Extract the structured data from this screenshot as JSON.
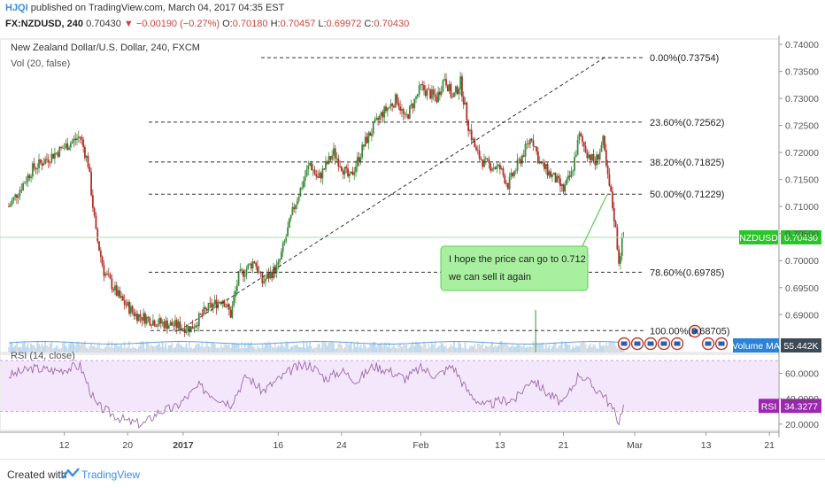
{
  "header": {
    "publisher": "HJQI",
    "published_text": "published on TradingView.com, March 04, 2017 04:35 EST",
    "symbol": "FX:NZDUSD, 240",
    "last": "0.70430",
    "change": "▼ −0.00190 (−0.27%)",
    "ohlc": {
      "o_label": "O:",
      "o": "0.70180",
      "h_label": "H:",
      "h": "0.70457",
      "l_label": "L:",
      "l": "0.69972",
      "c_label": "C:",
      "c": "0.70430"
    }
  },
  "chart_data": [
    {
      "type": "candlestick",
      "title": "New Zealand Dollar/U.S. Dollar, 240, FXCM",
      "subtitle": "Vol (20, false)",
      "ylim": [
        0.683,
        0.741
      ],
      "yticks": [
        0.74,
        0.735,
        0.73,
        0.725,
        0.72,
        0.715,
        0.71,
        0.705,
        0.7,
        0.695,
        0.69
      ],
      "ytick_labels": [
        "0.74000",
        "0.73500",
        "0.73000",
        "0.72500",
        "0.72000",
        "0.71500",
        "0.71000",
        "0.70500",
        "0.70000",
        "0.69500",
        "0.69000"
      ],
      "price_anchors": [
        {
          "d": 0,
          "p": 0.71
        },
        {
          "d": 3,
          "p": 0.717
        },
        {
          "d": 6,
          "p": 0.72
        },
        {
          "d": 9,
          "p": 0.723
        },
        {
          "d": 10,
          "p": 0.718
        },
        {
          "d": 11,
          "p": 0.705
        },
        {
          "d": 12,
          "p": 0.698
        },
        {
          "d": 14,
          "p": 0.693
        },
        {
          "d": 16,
          "p": 0.69
        },
        {
          "d": 19,
          "p": 0.6885
        },
        {
          "d": 21,
          "p": 0.688
        },
        {
          "d": 23,
          "p": 0.6875
        },
        {
          "d": 25,
          "p": 0.691
        },
        {
          "d": 27,
          "p": 0.693
        },
        {
          "d": 28,
          "p": 0.69
        },
        {
          "d": 29,
          "p": 0.697
        },
        {
          "d": 31,
          "p": 0.7
        },
        {
          "d": 32,
          "p": 0.696
        },
        {
          "d": 34,
          "p": 0.699
        },
        {
          "d": 36,
          "p": 0.71
        },
        {
          "d": 38,
          "p": 0.718
        },
        {
          "d": 39,
          "p": 0.715
        },
        {
          "d": 41,
          "p": 0.72
        },
        {
          "d": 43,
          "p": 0.715
        },
        {
          "d": 45,
          "p": 0.722
        },
        {
          "d": 47,
          "p": 0.727
        },
        {
          "d": 49,
          "p": 0.73
        },
        {
          "d": 50,
          "p": 0.726
        },
        {
          "d": 52,
          "p": 0.732
        },
        {
          "d": 54,
          "p": 0.73
        },
        {
          "d": 55,
          "p": 0.734
        },
        {
          "d": 56,
          "p": 0.73
        },
        {
          "d": 57,
          "p": 0.733
        },
        {
          "d": 58,
          "p": 0.725
        },
        {
          "d": 59,
          "p": 0.72
        },
        {
          "d": 60,
          "p": 0.718
        },
        {
          "d": 62,
          "p": 0.717
        },
        {
          "d": 63,
          "p": 0.714
        },
        {
          "d": 65,
          "p": 0.72
        },
        {
          "d": 66,
          "p": 0.723
        },
        {
          "d": 67,
          "p": 0.718
        },
        {
          "d": 69,
          "p": 0.715
        },
        {
          "d": 70,
          "p": 0.713
        },
        {
          "d": 71,
          "p": 0.716
        },
        {
          "d": 72,
          "p": 0.723
        },
        {
          "d": 73,
          "p": 0.72
        },
        {
          "d": 74,
          "p": 0.718
        },
        {
          "d": 75,
          "p": 0.722
        },
        {
          "d": 75.5,
          "p": 0.716
        },
        {
          "d": 76,
          "p": 0.712
        },
        {
          "d": 76.5,
          "p": 0.707
        },
        {
          "d": 77,
          "p": 0.7
        },
        {
          "d": 77.5,
          "p": 0.7043
        }
      ],
      "last_price": 0.7043,
      "last_price_label": "NZDUSD",
      "last_price_value": "0.70430",
      "fib": {
        "levels": [
          {
            "label": "0.00%(0.73754)",
            "price": 0.73754
          },
          {
            "label": "23.60%(0.72562)",
            "price": 0.72562
          },
          {
            "label": "38.20%(0.71825)",
            "price": 0.71825
          },
          {
            "label": "50.00%(0.71229)",
            "price": 0.71229
          },
          {
            "label": "78.60%(0.69785)",
            "price": 0.69785
          },
          {
            "label": "100.00%(0.68705)",
            "price": 0.68705
          }
        ],
        "trend_start": {
          "d": 21.5,
          "p": 0.68705
        },
        "trend_end": {
          "d": 66,
          "p": 0.73754
        }
      },
      "annotation": {
        "text": [
          "I hope the price can go to 0.712",
          "we can sell it again"
        ]
      },
      "volume_label": "Volume MA",
      "volume_value": "55.442K"
    },
    {
      "type": "line",
      "title": "RSI (14, close)",
      "ylim": [
        15,
        75
      ],
      "band": [
        30,
        70
      ],
      "yticks": [
        60,
        40,
        20
      ],
      "ytick_labels": [
        "60.0000",
        "40.0000",
        "20.0000"
      ],
      "label": "RSI",
      "value": "34.3277",
      "anchors": [
        {
          "d": 0,
          "v": 58
        },
        {
          "d": 3,
          "v": 64
        },
        {
          "d": 6,
          "v": 62
        },
        {
          "d": 9,
          "v": 66
        },
        {
          "d": 11,
          "v": 35
        },
        {
          "d": 13,
          "v": 28
        },
        {
          "d": 15,
          "v": 22
        },
        {
          "d": 17,
          "v": 20
        },
        {
          "d": 19,
          "v": 30
        },
        {
          "d": 21,
          "v": 33
        },
        {
          "d": 24,
          "v": 50
        },
        {
          "d": 26,
          "v": 42
        },
        {
          "d": 28,
          "v": 36
        },
        {
          "d": 30,
          "v": 58
        },
        {
          "d": 32,
          "v": 46
        },
        {
          "d": 34,
          "v": 55
        },
        {
          "d": 36,
          "v": 64
        },
        {
          "d": 38,
          "v": 67
        },
        {
          "d": 40,
          "v": 56
        },
        {
          "d": 42,
          "v": 62
        },
        {
          "d": 44,
          "v": 54
        },
        {
          "d": 46,
          "v": 66
        },
        {
          "d": 48,
          "v": 62
        },
        {
          "d": 50,
          "v": 56
        },
        {
          "d": 52,
          "v": 64
        },
        {
          "d": 54,
          "v": 58
        },
        {
          "d": 56,
          "v": 66
        },
        {
          "d": 58,
          "v": 45
        },
        {
          "d": 60,
          "v": 34
        },
        {
          "d": 62,
          "v": 38
        },
        {
          "d": 64,
          "v": 40
        },
        {
          "d": 66,
          "v": 56
        },
        {
          "d": 68,
          "v": 44
        },
        {
          "d": 70,
          "v": 36
        },
        {
          "d": 72,
          "v": 60
        },
        {
          "d": 74,
          "v": 48
        },
        {
          "d": 75,
          "v": 44
        },
        {
          "d": 76,
          "v": 34
        },
        {
          "d": 77,
          "v": 22
        },
        {
          "d": 77.5,
          "v": 34
        }
      ]
    }
  ],
  "xaxis": {
    "ticks": [
      {
        "d": 7,
        "label": "12",
        "bold": false
      },
      {
        "d": 15,
        "label": "20",
        "bold": false
      },
      {
        "d": 22,
        "label": "2017",
        "bold": true
      },
      {
        "d": 34,
        "label": "16",
        "bold": false
      },
      {
        "d": 42,
        "label": "24",
        "bold": false
      },
      {
        "d": 52,
        "label": "Feb",
        "bold": false
      },
      {
        "d": 62,
        "label": "13",
        "bold": false
      },
      {
        "d": 70,
        "label": "21",
        "bold": false
      },
      {
        "d": 79,
        "label": "Mar",
        "bold": false
      },
      {
        "d": 88,
        "label": "13",
        "bold": false
      },
      {
        "d": 96,
        "label": "21",
        "bold": false
      }
    ]
  },
  "colors": {
    "up": "#3d8b3d",
    "down": "#b03028",
    "fib": "#333333",
    "rsi": "#9c6bab",
    "rsi_band": "#f4e6fb",
    "price_label_bg": "#27c727",
    "rsi_label_bg": "#9c27b0",
    "vol_label_bg": "#2a83d8",
    "note_bg": "#a8f0a0",
    "note_border": "#5ccb50",
    "axis_text": "#555555"
  },
  "footer": {
    "created": "Created with",
    "brand": "TradingView"
  }
}
